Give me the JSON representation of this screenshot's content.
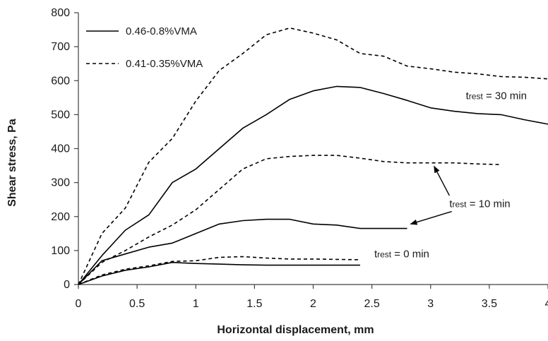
{
  "chart_data": {
    "type": "line",
    "title": "",
    "xlabel": "Horizontal displacement, mm",
    "ylabel": "Shear stress, Pa",
    "xlim": [
      0,
      4
    ],
    "ylim": [
      0,
      800
    ],
    "x_ticks": [
      0,
      0.5,
      1,
      1.5,
      2,
      2.5,
      3,
      3.5,
      4
    ],
    "x_tick_labels": [
      "0",
      "0.5",
      "1",
      "1.5",
      "2",
      "2.5",
      "3",
      "3.5",
      "4"
    ],
    "y_ticks": [
      0,
      100,
      200,
      300,
      400,
      500,
      600,
      700,
      800
    ],
    "y_tick_labels": [
      "0",
      "100",
      "200",
      "300",
      "400",
      "500",
      "600",
      "700",
      "800"
    ],
    "grid": false,
    "legend": {
      "placement": "top-left",
      "entries": [
        {
          "label": "0.46-0.8%VMA",
          "style": "solid"
        },
        {
          "label": "0.41-0.35%VMA",
          "style": "dashed"
        }
      ]
    },
    "colors": {
      "line": "#000000",
      "axis": "#404040",
      "text": "#1a1a1a"
    },
    "series": [
      {
        "style": "solid",
        "rest": "30 min",
        "x": [
          0,
          0.2,
          0.4,
          0.6,
          0.8,
          1.0,
          1.2,
          1.4,
          1.6,
          1.8,
          2.0,
          2.2,
          2.4,
          2.6,
          2.8,
          3.0,
          3.2,
          3.4,
          3.6,
          3.8,
          4.0
        ],
        "y": [
          0,
          85,
          160,
          205,
          300,
          340,
          400,
          460,
          500,
          545,
          570,
          583,
          580,
          562,
          542,
          520,
          510,
          503,
          500,
          485,
          472
        ]
      },
      {
        "style": "dashed",
        "rest": "30 min",
        "x": [
          0,
          0.2,
          0.4,
          0.6,
          0.8,
          1.0,
          1.2,
          1.4,
          1.6,
          1.8,
          2.0,
          2.2,
          2.4,
          2.6,
          2.8,
          3.0,
          3.2,
          3.4,
          3.6,
          3.8,
          4.0
        ],
        "y": [
          0,
          150,
          225,
          360,
          430,
          540,
          630,
          680,
          735,
          755,
          740,
          720,
          680,
          672,
          643,
          635,
          625,
          620,
          612,
          610,
          605
        ]
      },
      {
        "style": "solid",
        "rest": "10 min",
        "x": [
          0,
          0.2,
          0.4,
          0.6,
          0.8,
          1.0,
          1.2,
          1.4,
          1.6,
          1.8,
          2.0,
          2.2,
          2.4,
          2.6,
          2.8
        ],
        "y": [
          0,
          70,
          90,
          110,
          122,
          150,
          178,
          188,
          192,
          192,
          178,
          175,
          165,
          165,
          165
        ]
      },
      {
        "style": "dashed",
        "rest": "10 min",
        "x": [
          0,
          0.2,
          0.4,
          0.6,
          0.8,
          1.0,
          1.2,
          1.4,
          1.6,
          1.8,
          2.0,
          2.2,
          2.4,
          2.6,
          2.8,
          3.0,
          3.2,
          3.4,
          3.6
        ],
        "y": [
          0,
          65,
          100,
          140,
          175,
          220,
          280,
          340,
          370,
          377,
          380,
          380,
          372,
          362,
          358,
          358,
          358,
          355,
          353
        ]
      },
      {
        "style": "solid",
        "rest": "0 min",
        "x": [
          0,
          0.2,
          0.4,
          0.6,
          0.8,
          1.0,
          1.2,
          1.4,
          1.6,
          1.8,
          2.0,
          2.2,
          2.4
        ],
        "y": [
          0,
          25,
          42,
          52,
          65,
          62,
          60,
          58,
          57,
          57,
          57,
          57,
          57
        ]
      },
      {
        "style": "dashed",
        "rest": "0 min",
        "x": [
          0,
          0.2,
          0.4,
          0.6,
          0.8,
          1.0,
          1.2,
          1.4,
          1.6,
          1.8,
          2.0,
          2.2,
          2.4
        ],
        "y": [
          0,
          28,
          45,
          55,
          68,
          70,
          80,
          82,
          78,
          75,
          75,
          74,
          73
        ]
      }
    ],
    "annotations": [
      {
        "main": "t",
        "sub": "rest",
        "rest": " = 30 min",
        "x": 3.3,
        "y": 545
      },
      {
        "main": "t",
        "sub": "rest",
        "rest": " = 10 min",
        "x": 3.16,
        "y": 228
      },
      {
        "main": "t",
        "sub": "rest",
        "rest": " = 0 min",
        "x": 2.52,
        "y": 80
      }
    ],
    "arrows": [
      {
        "from": [
          3.16,
          262
        ],
        "to": [
          3.03,
          348
        ]
      },
      {
        "from": [
          3.18,
          215
        ],
        "to": [
          2.83,
          178
        ]
      }
    ]
  }
}
